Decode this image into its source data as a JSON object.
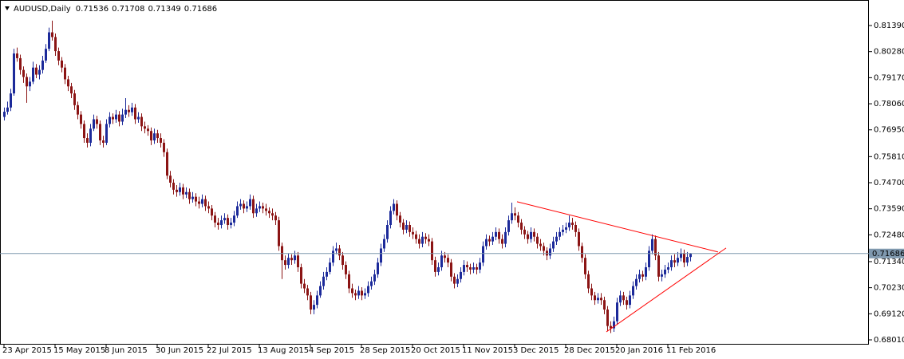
{
  "chart_data": {
    "type": "candlestick",
    "title": "AUDUSD,Daily",
    "categories": [
      "23 Apr 2015",
      null,
      null,
      null,
      null,
      null,
      null,
      null,
      null,
      null,
      null,
      null,
      null,
      null,
      null,
      null,
      "15 May 2015",
      null,
      null,
      null,
      null,
      null,
      null,
      null,
      null,
      null,
      null,
      null,
      null,
      null,
      null,
      null,
      "8 Jun 2015",
      null,
      null,
      null,
      null,
      null,
      null,
      null,
      null,
      null,
      null,
      null,
      null,
      null,
      null,
      null,
      "30 Jun 2015",
      null,
      null,
      null,
      null,
      null,
      null,
      null,
      null,
      null,
      null,
      null,
      null,
      null,
      null,
      null,
      "22 Jul 2015",
      null,
      null,
      null,
      null,
      null,
      null,
      null,
      null,
      null,
      null,
      null,
      null,
      null,
      null,
      null,
      "13 Aug 2015",
      null,
      null,
      null,
      null,
      null,
      null,
      null,
      null,
      null,
      null,
      null,
      null,
      null,
      null,
      null,
      "4 Sep 2015",
      null,
      null,
      null,
      null,
      null,
      null,
      null,
      null,
      null,
      null,
      null,
      null,
      null,
      null,
      null,
      "28 Sep 2015",
      null,
      null,
      null,
      null,
      null,
      null,
      null,
      null,
      null,
      null,
      null,
      null,
      null,
      null,
      null,
      "20 Oct 2015",
      null,
      null,
      null,
      null,
      null,
      null,
      null,
      null,
      null,
      null,
      null,
      null,
      null,
      null,
      null,
      "11 Nov 2015",
      null,
      null,
      null,
      null,
      null,
      null,
      null,
      null,
      null,
      null,
      null,
      null,
      null,
      null,
      null,
      "3 Dec 2015",
      null,
      null,
      null,
      null,
      null,
      null,
      null,
      null,
      null,
      null,
      null,
      null,
      null,
      null,
      null,
      "28 Dec 2015",
      null,
      null,
      null,
      null,
      null,
      null,
      null,
      null,
      null,
      null,
      null,
      null,
      null,
      null,
      null,
      "20 Jan 2016",
      null,
      null,
      null,
      null,
      null,
      null,
      null,
      null,
      null,
      null,
      null,
      null,
      null,
      null,
      null,
      "11 Feb 2016",
      null,
      null,
      null,
      null,
      null,
      null,
      null
    ],
    "open": [
      0.775,
      0.7772,
      0.779,
      0.785,
      0.802,
      0.8,
      0.795,
      0.792,
      0.788,
      0.79,
      0.796,
      0.793,
      0.795,
      0.799,
      0.804,
      0.811,
      0.809,
      0.803,
      0.799,
      0.796,
      0.791,
      0.788,
      0.785,
      0.78,
      0.776,
      0.772,
      0.766,
      0.764,
      0.77,
      0.774,
      0.772,
      0.765,
      0.764,
      0.772,
      0.775,
      0.774,
      0.776,
      0.773,
      0.776,
      0.778,
      0.777,
      0.779,
      0.774,
      0.775,
      0.771,
      0.77,
      0.769,
      0.765,
      0.768,
      0.766,
      0.764,
      0.76,
      0.75,
      0.747,
      0.744,
      0.743,
      0.745,
      0.742,
      0.743,
      0.74,
      0.741,
      0.739,
      0.738,
      0.74,
      0.737,
      0.736,
      0.733,
      0.73,
      0.729,
      0.731,
      0.732,
      0.729,
      0.73,
      0.733,
      0.737,
      0.738,
      0.736,
      0.737,
      0.74,
      0.734,
      0.736,
      0.737,
      0.736,
      0.735,
      0.734,
      0.733,
      0.731,
      0.72,
      0.714,
      0.712,
      0.715,
      0.714,
      0.716,
      0.711,
      0.704,
      0.702,
      0.699,
      0.693,
      0.695,
      0.699,
      0.703,
      0.707,
      0.709,
      0.713,
      0.718,
      0.719,
      0.716,
      0.712,
      0.708,
      0.702,
      0.7,
      0.699,
      0.701,
      0.699,
      0.7,
      0.703,
      0.705,
      0.708,
      0.713,
      0.719,
      0.723,
      0.729,
      0.735,
      0.738,
      0.733,
      0.73,
      0.727,
      0.729,
      0.726,
      0.725,
      0.723,
      0.721,
      0.724,
      0.723,
      0.722,
      0.714,
      0.709,
      0.711,
      0.716,
      0.715,
      0.713,
      0.707,
      0.704,
      0.706,
      0.709,
      0.712,
      0.711,
      0.71,
      0.711,
      0.71,
      0.713,
      0.72,
      0.723,
      0.722,
      0.724,
      0.726,
      0.723,
      0.721,
      0.726,
      0.731,
      0.734,
      0.733,
      0.73,
      0.727,
      0.725,
      0.723,
      0.726,
      0.724,
      0.721,
      0.72,
      0.718,
      0.716,
      0.719,
      0.722,
      0.724,
      0.726,
      0.727,
      0.728,
      0.73,
      0.729,
      0.726,
      0.72,
      0.715,
      0.708,
      0.702,
      0.699,
      0.697,
      0.698,
      0.697,
      0.693,
      0.686,
      0.685,
      0.688,
      0.696,
      0.699,
      0.697,
      0.695,
      0.699,
      0.703,
      0.706,
      0.708,
      0.707,
      0.711,
      0.718,
      0.723,
      0.716,
      0.707,
      0.708,
      0.71,
      0.711,
      0.714,
      0.713,
      0.715,
      0.717,
      0.713,
      0.71536
    ],
    "high": [
      0.779,
      0.7815,
      0.787,
      0.804,
      0.8045,
      0.8015,
      0.7965,
      0.7935,
      0.792,
      0.7985,
      0.7975,
      0.797,
      0.801,
      0.806,
      0.813,
      0.816,
      0.8105,
      0.8045,
      0.8005,
      0.7975,
      0.7925,
      0.7895,
      0.7865,
      0.7815,
      0.7775,
      0.7735,
      0.768,
      0.772,
      0.776,
      0.7755,
      0.7735,
      0.767,
      0.774,
      0.777,
      0.7765,
      0.778,
      0.7775,
      0.7785,
      0.783,
      0.78,
      0.781,
      0.7805,
      0.777,
      0.7765,
      0.773,
      0.7715,
      0.7705,
      0.77,
      0.7695,
      0.768,
      0.7655,
      0.7615,
      0.752,
      0.7485,
      0.746,
      0.747,
      0.7465,
      0.745,
      0.7445,
      0.743,
      0.7425,
      0.741,
      0.742,
      0.7415,
      0.739,
      0.7375,
      0.7345,
      0.732,
      0.733,
      0.734,
      0.7335,
      0.732,
      0.735,
      0.739,
      0.74,
      0.7395,
      0.739,
      0.742,
      0.7415,
      0.738,
      0.739,
      0.7385,
      0.738,
      0.7365,
      0.736,
      0.7345,
      0.7325,
      0.7215,
      0.716,
      0.717,
      0.7165,
      0.718,
      0.7175,
      0.7125,
      0.706,
      0.7035,
      0.7005,
      0.697,
      0.701,
      0.705,
      0.709,
      0.711,
      0.715,
      0.72,
      0.7215,
      0.7205,
      0.7175,
      0.7135,
      0.7095,
      0.704,
      0.7015,
      0.703,
      0.7025,
      0.702,
      0.705,
      0.707,
      0.71,
      0.715,
      0.721,
      0.725,
      0.731,
      0.737,
      0.74,
      0.7395,
      0.7345,
      0.7315,
      0.731,
      0.7305,
      0.728,
      0.7265,
      0.725,
      0.726,
      0.7255,
      0.725,
      0.7235,
      0.7155,
      0.713,
      0.718,
      0.7175,
      0.7165,
      0.7145,
      0.7085,
      0.708,
      0.711,
      0.714,
      0.7135,
      0.7125,
      0.713,
      0.7125,
      0.715,
      0.722,
      0.725,
      0.7245,
      0.726,
      0.728,
      0.7275,
      0.725,
      0.728,
      0.733,
      0.7385,
      0.7365,
      0.7345,
      0.7315,
      0.7285,
      0.7265,
      0.728,
      0.7275,
      0.7255,
      0.723,
      0.7215,
      0.7195,
      0.721,
      0.724,
      0.726,
      0.728,
      0.729,
      0.73,
      0.733,
      0.732,
      0.7305,
      0.7275,
      0.7215,
      0.7165,
      0.7095,
      0.704,
      0.7005,
      0.7,
      0.7,
      0.6985,
      0.6945,
      0.688,
      0.69,
      0.698,
      0.701,
      0.7005,
      0.6985,
      0.701,
      0.705,
      0.708,
      0.71,
      0.7095,
      0.713,
      0.72,
      0.725,
      0.7245,
      0.7175,
      0.71,
      0.712,
      0.713,
      0.716,
      0.7165,
      0.7175,
      0.719,
      0.7185,
      0.7175,
      0.71708
    ],
    "low": [
      0.7735,
      0.776,
      0.7775,
      0.784,
      0.7985,
      0.793,
      0.7895,
      0.781,
      0.786,
      0.789,
      0.7915,
      0.791,
      0.7935,
      0.798,
      0.803,
      0.8075,
      0.801,
      0.797,
      0.794,
      0.789,
      0.786,
      0.783,
      0.778,
      0.774,
      0.77,
      0.764,
      0.762,
      0.7625,
      0.769,
      0.77,
      0.763,
      0.762,
      0.763,
      0.7705,
      0.772,
      0.7725,
      0.771,
      0.7715,
      0.7745,
      0.775,
      0.7755,
      0.772,
      0.7725,
      0.769,
      0.768,
      0.767,
      0.763,
      0.7635,
      0.764,
      0.762,
      0.758,
      0.7485,
      0.745,
      0.742,
      0.741,
      0.7415,
      0.74,
      0.7405,
      0.738,
      0.7385,
      0.737,
      0.736,
      0.7365,
      0.735,
      0.734,
      0.731,
      0.728,
      0.727,
      0.7275,
      0.7295,
      0.727,
      0.7275,
      0.7285,
      0.732,
      0.7355,
      0.734,
      0.7345,
      0.7355,
      0.732,
      0.7325,
      0.7345,
      0.734,
      0.733,
      0.732,
      0.731,
      0.729,
      0.718,
      0.706,
      0.71,
      0.7105,
      0.712,
      0.7125,
      0.709,
      0.702,
      0.7,
      0.697,
      0.691,
      0.691,
      0.6935,
      0.698,
      0.7015,
      0.7055,
      0.708,
      0.7115,
      0.7165,
      0.714,
      0.71,
      0.706,
      0.7,
      0.698,
      0.697,
      0.6975,
      0.697,
      0.6975,
      0.6985,
      0.7015,
      0.7035,
      0.7065,
      0.7115,
      0.7175,
      0.7215,
      0.7275,
      0.7335,
      0.731,
      0.728,
      0.725,
      0.7255,
      0.724,
      0.723,
      0.721,
      0.719,
      0.7195,
      0.721,
      0.72,
      0.712,
      0.707,
      0.7075,
      0.7095,
      0.713,
      0.711,
      0.705,
      0.702,
      0.7025,
      0.7045,
      0.7075,
      0.709,
      0.708,
      0.7085,
      0.708,
      0.7085,
      0.7115,
      0.7185,
      0.72,
      0.7205,
      0.7225,
      0.721,
      0.719,
      0.7195,
      0.7245,
      0.7295,
      0.731,
      0.728,
      0.725,
      0.723,
      0.721,
      0.7215,
      0.722,
      0.719,
      0.718,
      0.716,
      0.714,
      0.7145,
      0.7175,
      0.7205,
      0.7225,
      0.7245,
      0.7255,
      0.7265,
      0.727,
      0.724,
      0.718,
      0.713,
      0.706,
      0.7,
      0.697,
      0.695,
      0.6955,
      0.695,
      0.691,
      0.684,
      0.683,
      0.6835,
      0.6865,
      0.6945,
      0.695,
      0.693,
      0.6935,
      0.6975,
      0.7015,
      0.7045,
      0.705,
      0.7055,
      0.7095,
      0.7165,
      0.714,
      0.705,
      0.705,
      0.7065,
      0.7085,
      0.7095,
      0.711,
      0.7115,
      0.7135,
      0.711,
      0.7115,
      0.71349
    ],
    "close": [
      0.7772,
      0.779,
      0.785,
      0.802,
      0.8,
      0.795,
      0.792,
      0.788,
      0.79,
      0.796,
      0.793,
      0.795,
      0.799,
      0.804,
      0.811,
      0.809,
      0.803,
      0.799,
      0.796,
      0.791,
      0.788,
      0.785,
      0.78,
      0.776,
      0.772,
      0.766,
      0.764,
      0.77,
      0.774,
      0.772,
      0.765,
      0.764,
      0.772,
      0.775,
      0.774,
      0.776,
      0.773,
      0.776,
      0.778,
      0.777,
      0.779,
      0.774,
      0.775,
      0.771,
      0.77,
      0.769,
      0.765,
      0.768,
      0.766,
      0.764,
      0.76,
      0.75,
      0.747,
      0.744,
      0.743,
      0.745,
      0.742,
      0.743,
      0.74,
      0.741,
      0.739,
      0.738,
      0.74,
      0.737,
      0.736,
      0.733,
      0.73,
      0.729,
      0.731,
      0.732,
      0.729,
      0.73,
      0.733,
      0.737,
      0.738,
      0.736,
      0.737,
      0.74,
      0.734,
      0.736,
      0.737,
      0.736,
      0.735,
      0.734,
      0.733,
      0.731,
      0.72,
      0.714,
      0.712,
      0.715,
      0.714,
      0.716,
      0.711,
      0.704,
      0.702,
      0.699,
      0.693,
      0.695,
      0.699,
      0.703,
      0.707,
      0.709,
      0.713,
      0.718,
      0.719,
      0.716,
      0.712,
      0.708,
      0.702,
      0.7,
      0.699,
      0.701,
      0.699,
      0.7,
      0.703,
      0.705,
      0.708,
      0.713,
      0.719,
      0.723,
      0.729,
      0.735,
      0.738,
      0.733,
      0.73,
      0.727,
      0.729,
      0.726,
      0.725,
      0.723,
      0.721,
      0.724,
      0.723,
      0.722,
      0.714,
      0.709,
      0.711,
      0.716,
      0.715,
      0.713,
      0.707,
      0.704,
      0.706,
      0.709,
      0.712,
      0.711,
      0.71,
      0.711,
      0.71,
      0.713,
      0.72,
      0.723,
      0.722,
      0.724,
      0.726,
      0.723,
      0.721,
      0.726,
      0.731,
      0.734,
      0.733,
      0.73,
      0.727,
      0.725,
      0.723,
      0.726,
      0.724,
      0.721,
      0.72,
      0.718,
      0.716,
      0.719,
      0.722,
      0.724,
      0.726,
      0.727,
      0.728,
      0.73,
      0.729,
      0.726,
      0.72,
      0.715,
      0.708,
      0.702,
      0.699,
      0.697,
      0.698,
      0.697,
      0.693,
      0.686,
      0.685,
      0.688,
      0.696,
      0.699,
      0.697,
      0.695,
      0.699,
      0.703,
      0.706,
      0.708,
      0.707,
      0.711,
      0.718,
      0.723,
      0.716,
      0.707,
      0.708,
      0.71,
      0.711,
      0.714,
      0.713,
      0.715,
      0.717,
      0.713,
      0.7154,
      0.71686
    ],
    "up_color": "#1c2a9a",
    "down_color": "#8b1414",
    "ylim": [
      0.67806,
      0.82477
    ],
    "yticks": [
      {
        "value": 0.8139,
        "label": "0.81390"
      },
      {
        "value": 0.8028,
        "label": "0.80280"
      },
      {
        "value": 0.7917,
        "label": "0.79170"
      },
      {
        "value": 0.7806,
        "label": "0.78060"
      },
      {
        "value": 0.7695,
        "label": "0.76950"
      },
      {
        "value": 0.7581,
        "label": "0.75810"
      },
      {
        "value": 0.747,
        "label": "0.74700"
      },
      {
        "value": 0.7359,
        "label": "0.73590"
      },
      {
        "value": 0.7248,
        "label": "0.72480"
      },
      {
        "value": 0.7134,
        "label": "0.71340"
      },
      {
        "value": 0.7023,
        "label": "0.70230"
      },
      {
        "value": 0.6912,
        "label": "0.69120"
      },
      {
        "value": 0.6801,
        "label": "0.68010"
      }
    ],
    "price_line_color": "#7f98ae",
    "trendlines": [
      {
        "color": "#ff0000",
        "x": [
          160.75,
          223.75
        ],
        "y": [
          0.7389,
          0.7175
        ]
      },
      {
        "color": "#ff0000",
        "x": [
          188.75,
          226.25
        ],
        "y": [
          0.6835,
          0.7192
        ]
      }
    ]
  }
}
